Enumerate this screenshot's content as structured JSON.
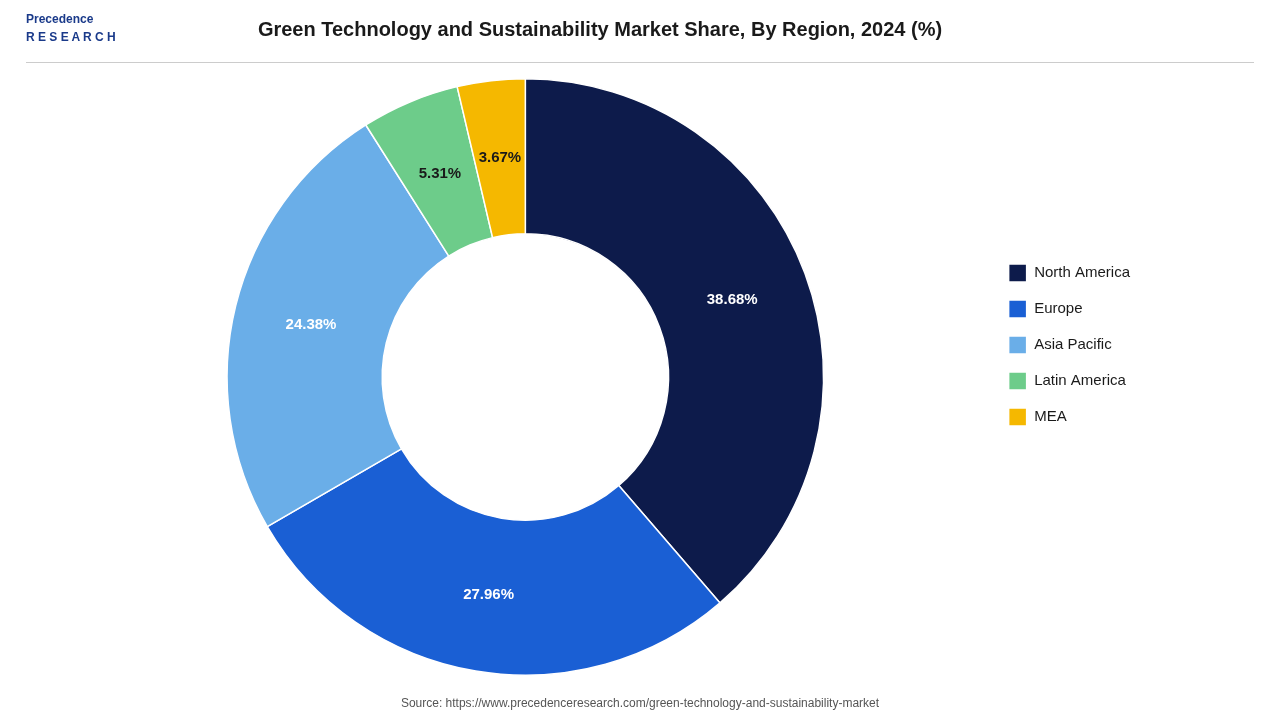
{
  "chart_data": {
    "type": "doughnut",
    "title": "Green Technology and Sustainability Market Share, By Region, 2024 (%)",
    "categories": [
      "North America",
      "Europe",
      "Asia Pacific",
      "Latin America",
      "MEA"
    ],
    "values": [
      38.68,
      27.96,
      24.38,
      5.31,
      3.67
    ],
    "value_labels": [
      "38.68%",
      "27.96%",
      "24.38%",
      "5.31%",
      "3.67%"
    ],
    "colors": [
      "#0d1b4b",
      "#1a5fd4",
      "#6aaee8",
      "#6dcc8a",
      "#f5b800"
    ],
    "data_labels": true,
    "legend": "right",
    "annotations": [
      "Precedence\nR E S E A R C H",
      "Source: https://www.precedenceresearch.com/green-technology-and-sustainability-market"
    ]
  }
}
